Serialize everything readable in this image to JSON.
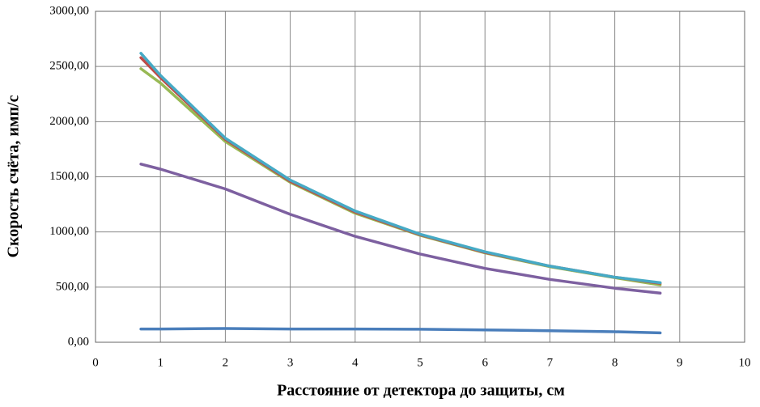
{
  "chart_data": {
    "type": "line",
    "x": [
      0.7,
      1,
      2,
      3,
      4,
      5,
      6,
      7,
      8,
      8.7
    ],
    "series": [
      {
        "color": "#4a7ebb",
        "values": [
          120,
          120,
          125,
          120,
          120,
          118,
          112,
          105,
          95,
          85
        ]
      },
      {
        "color": "#7d60a0",
        "values": [
          1615,
          1570,
          1390,
          1160,
          960,
          800,
          670,
          570,
          490,
          445
        ]
      },
      {
        "color": "#98b954",
        "values": [
          2480,
          2350,
          1820,
          1450,
          1170,
          970,
          810,
          685,
          585,
          520
        ]
      },
      {
        "color": "#be4b48",
        "values": [
          2580,
          2400,
          1840,
          1460,
          1180,
          975,
          815,
          690,
          590,
          535
        ]
      },
      {
        "color": "#46aac5",
        "values": [
          2620,
          2420,
          1850,
          1470,
          1190,
          980,
          820,
          690,
          590,
          540
        ]
      }
    ],
    "xlim": [
      0,
      10
    ],
    "xticks": [
      0,
      1,
      2,
      3,
      4,
      5,
      6,
      7,
      8,
      9,
      10
    ],
    "ylim": [
      0,
      3000
    ],
    "yticks": [
      {
        "value": 0,
        "label": "0,00"
      },
      {
        "value": 500,
        "label": "500,00"
      },
      {
        "value": 1000,
        "label": "1000,00"
      },
      {
        "value": 1500,
        "label": "1500,00"
      },
      {
        "value": 2000,
        "label": "2000,00"
      },
      {
        "value": 2500,
        "label": "2500,00"
      },
      {
        "value": 3000,
        "label": "3000,00"
      }
    ],
    "grid": true,
    "xlabel": "Расстояние от детектора до защиты, см",
    "ylabel": "Скорость счёта, имп/с"
  }
}
